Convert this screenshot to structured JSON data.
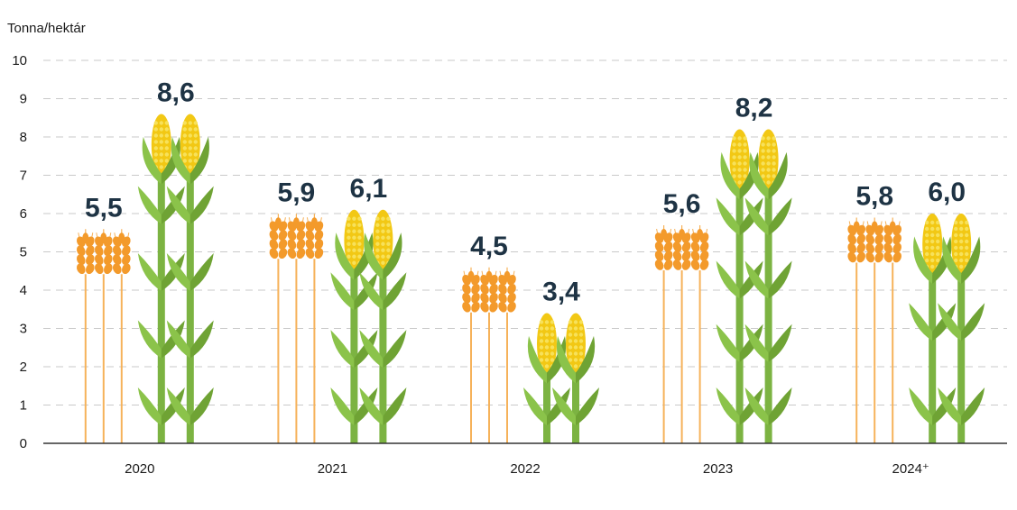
{
  "chart_data": {
    "type": "bar",
    "ylabel": "Tonna/hektár",
    "ylim": [
      0,
      10
    ],
    "yticks": [
      "0",
      "1",
      "2",
      "3",
      "4",
      "5",
      "6",
      "7",
      "8",
      "9",
      "10"
    ],
    "grid": true,
    "categories": [
      "2020",
      "2021",
      "2022",
      "2023",
      "2024⁺"
    ],
    "series": [
      {
        "icon": "wheat-icon",
        "color": "#f39a2b",
        "values": [
          5.5,
          5.9,
          4.5,
          5.6,
          5.8
        ],
        "labels": [
          "5,5",
          "5,9",
          "4,5",
          "5,6",
          "5,8"
        ]
      },
      {
        "icon": "corn-icon",
        "color": "#f2c814",
        "values": [
          8.6,
          6.1,
          3.4,
          8.2,
          6.0
        ],
        "labels": [
          "8,6",
          "6,1",
          "3,4",
          "8,2",
          "6,0"
        ]
      }
    ],
    "colors": {
      "stalk": "#7cb342",
      "leaf": "#8bc34a",
      "leaf_dark": "#6fa334",
      "wheat_stem": "#f6b25a",
      "label": "#1e3344"
    }
  }
}
